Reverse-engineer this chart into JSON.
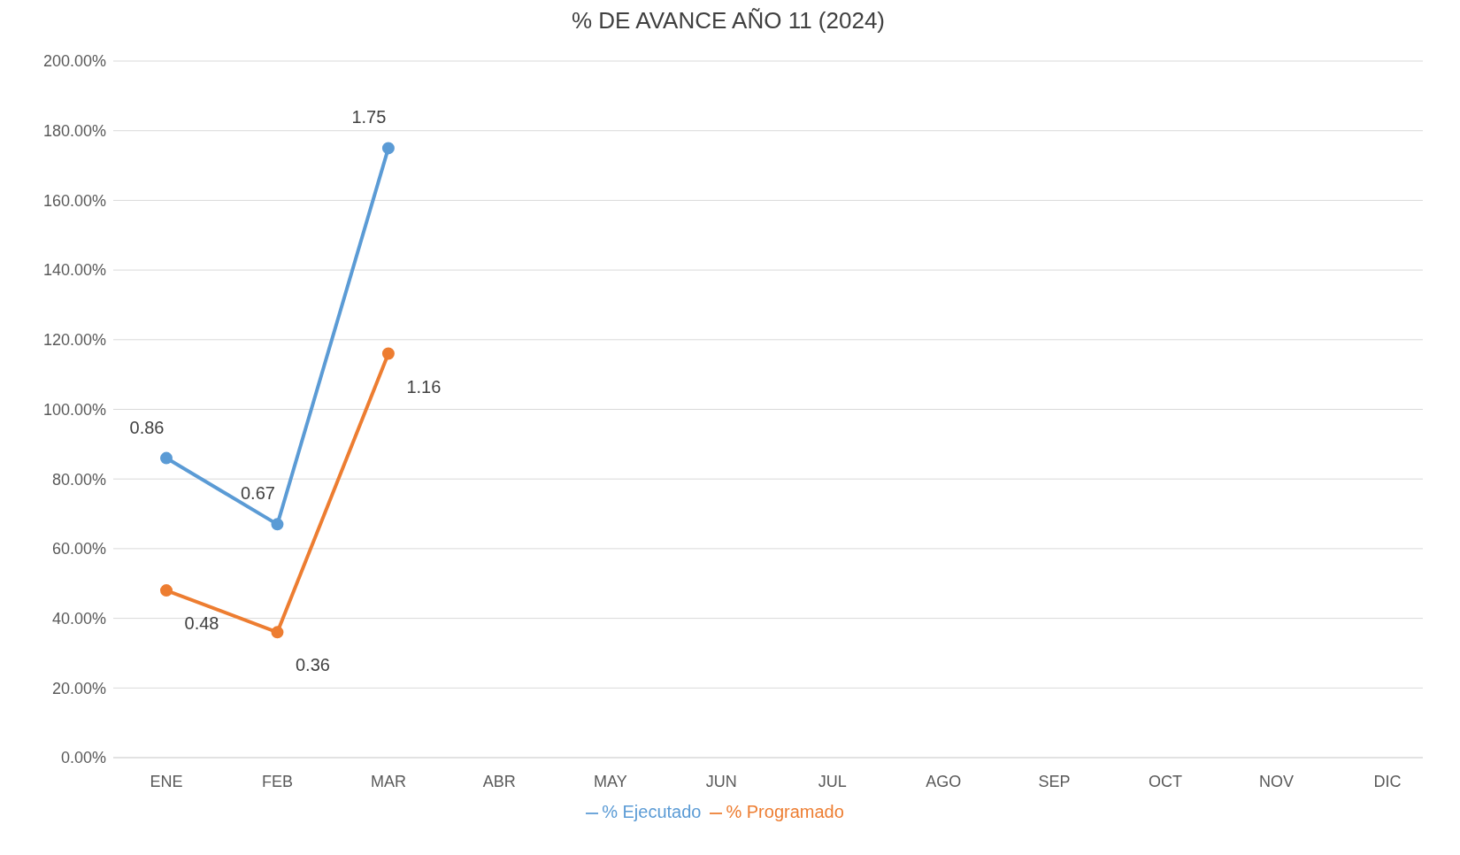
{
  "chart_data": {
    "type": "line",
    "title": "% DE AVANCE AÑO 11 (2024)",
    "categories": [
      "ENE",
      "FEB",
      "MAR",
      "ABR",
      "MAY",
      "JUN",
      "JUL",
      "AGO",
      "SEP",
      "OCT",
      "NOV",
      "DIC"
    ],
    "series": [
      {
        "name": "% Ejecutado",
        "color": "#5b9bd5",
        "values": [
          0.86,
          0.67,
          1.75,
          null,
          null,
          null,
          null,
          null,
          null,
          null,
          null,
          null
        ]
      },
      {
        "name": "% Programado",
        "color": "#ed7d31",
        "values": [
          0.48,
          0.36,
          1.16,
          null,
          null,
          null,
          null,
          null,
          null,
          null,
          null,
          null
        ]
      }
    ],
    "ylim": [
      0,
      2
    ],
    "yticks": [
      {
        "value": 0,
        "label": "0.00%"
      },
      {
        "value": 0.2,
        "label": "20.00%"
      },
      {
        "value": 0.4,
        "label": "40.00%"
      },
      {
        "value": 0.6,
        "label": "60.00%"
      },
      {
        "value": 0.8,
        "label": "80.00%"
      },
      {
        "value": 1,
        "label": "100.00%"
      },
      {
        "value": 1.2,
        "label": "120.00%"
      },
      {
        "value": 1.4,
        "label": "140.00%"
      },
      {
        "value": 1.6,
        "label": "160.00%"
      },
      {
        "value": 1.8,
        "label": "180.00%"
      },
      {
        "value": 2,
        "label": "200.00%"
      }
    ],
    "grid": "y",
    "legend": "bottom",
    "marker": "circle",
    "line_style": "solid",
    "data_labels": true
  }
}
